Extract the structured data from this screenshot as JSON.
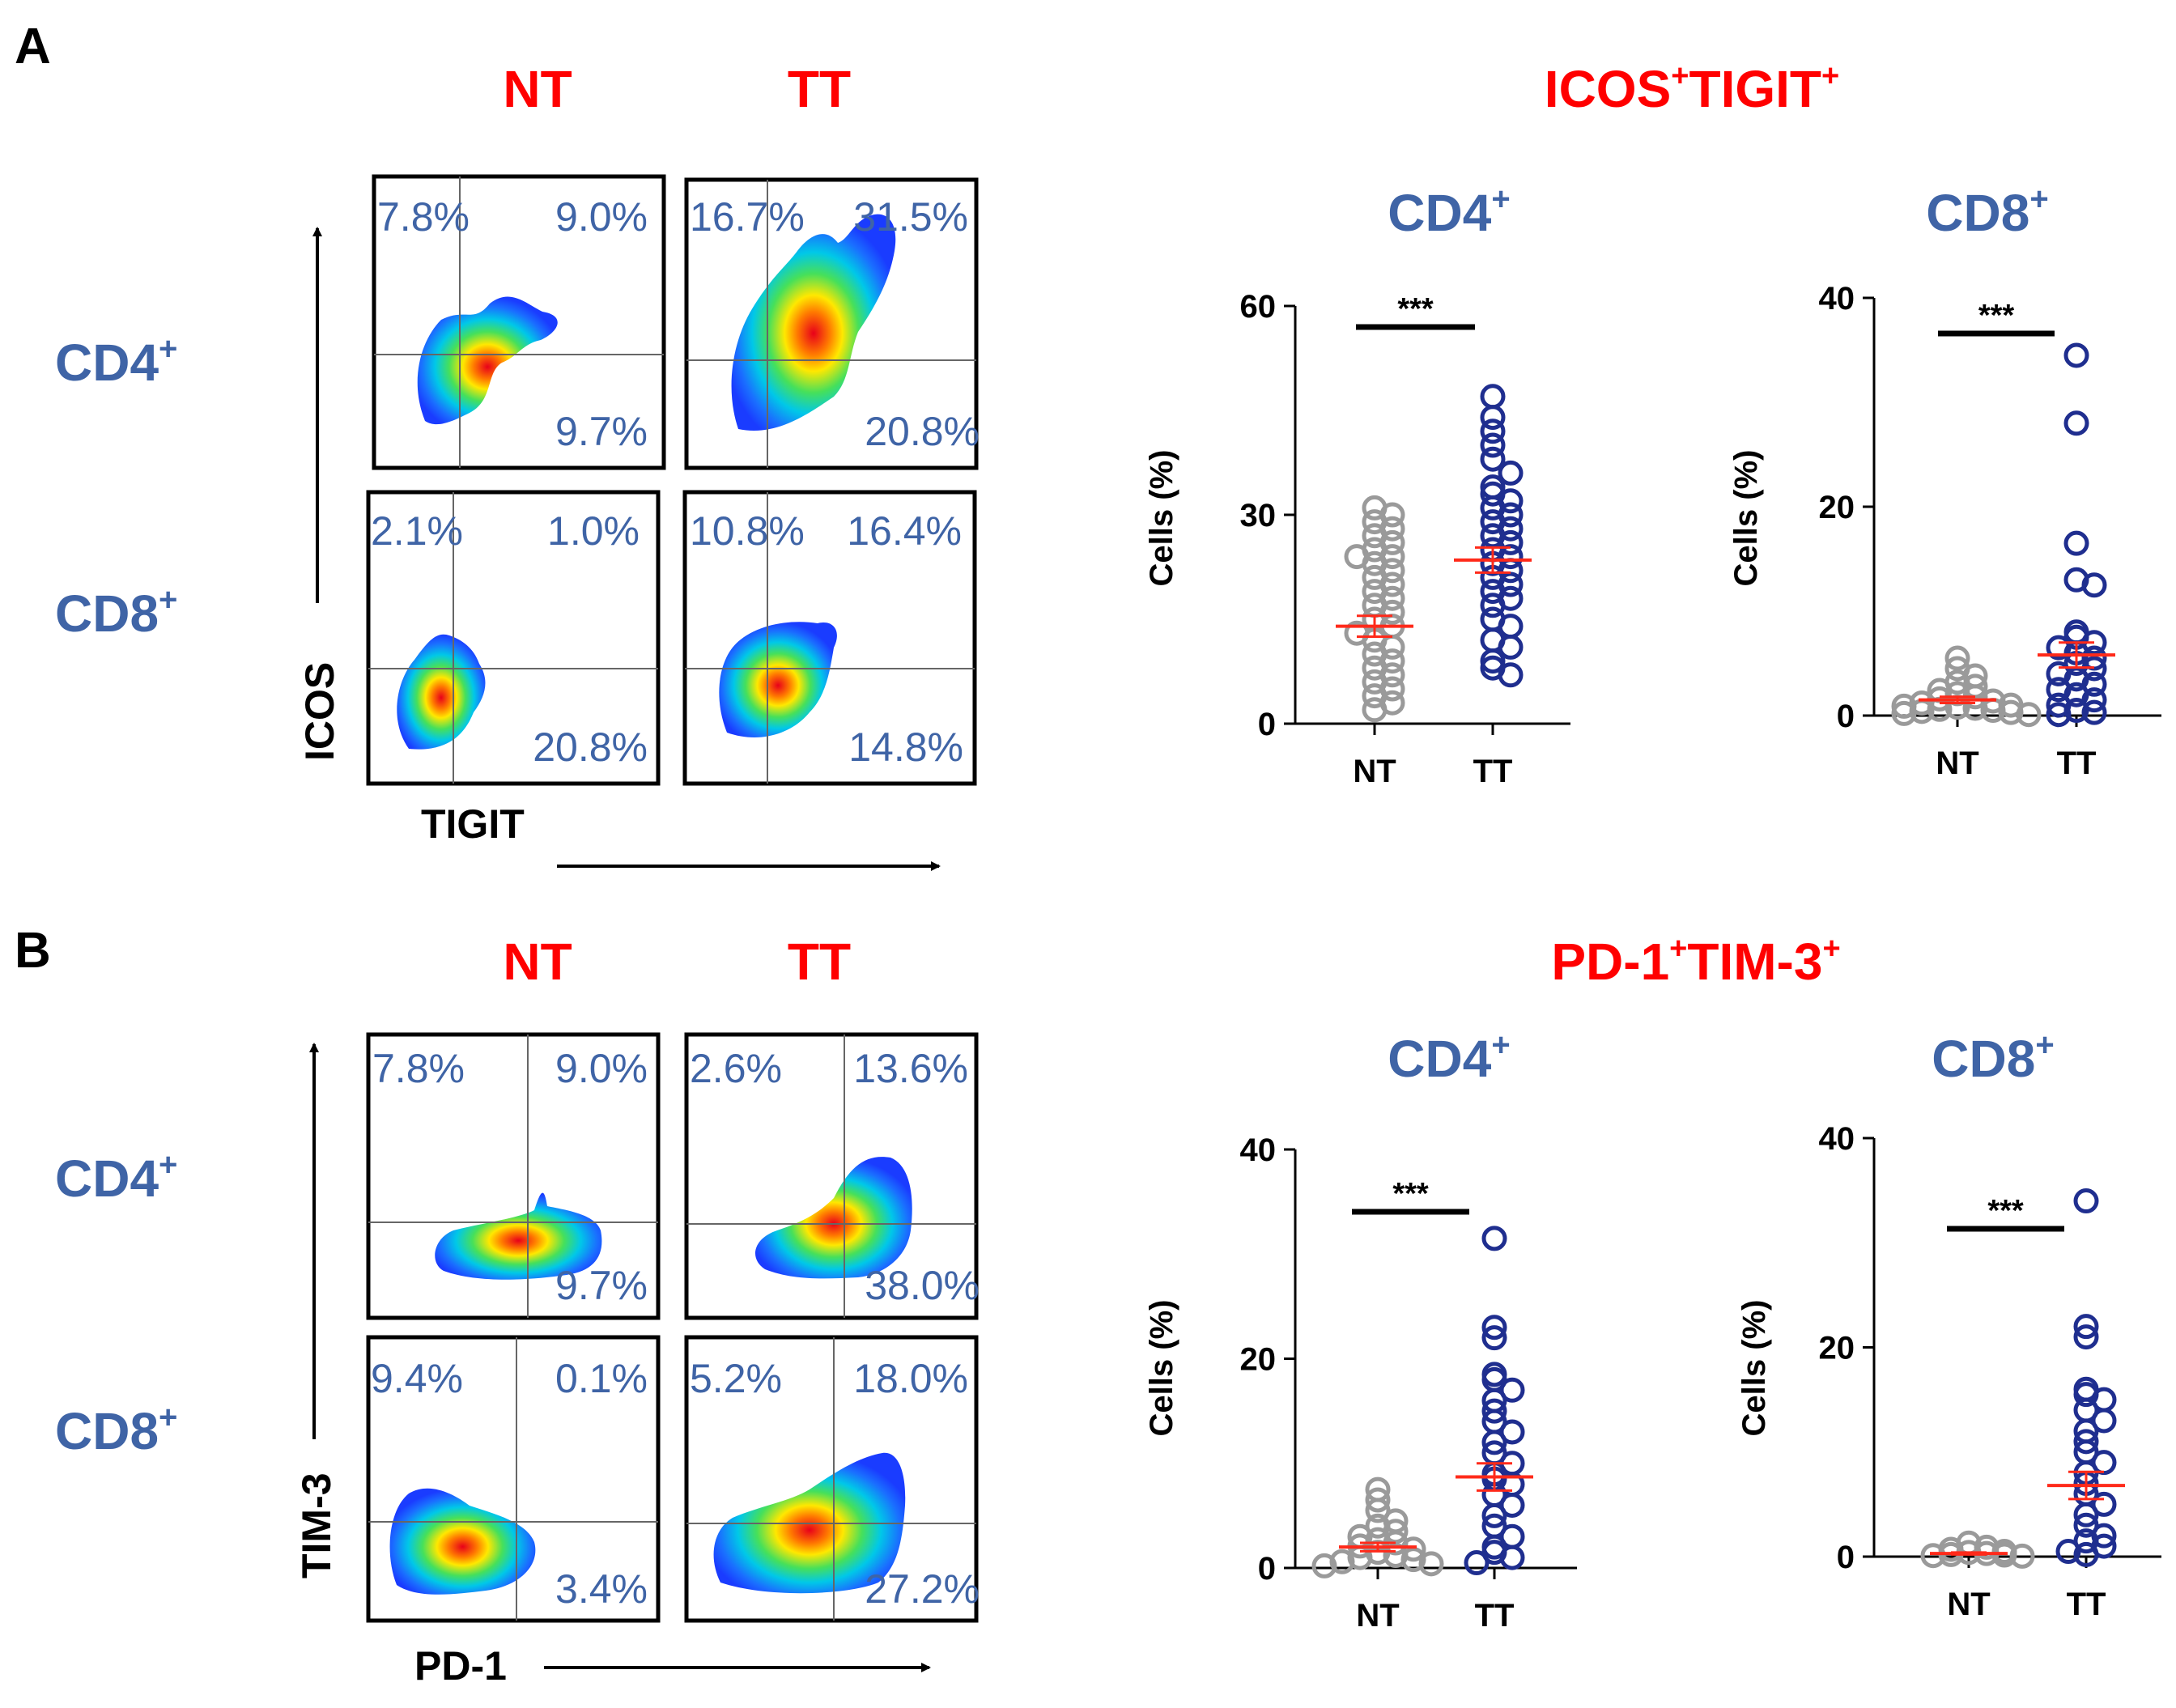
{
  "panels": {
    "a": {
      "letter": "A",
      "col_nt": "NT",
      "col_tt": "TT",
      "row_cd4": "CD4",
      "row_cd8": "CD8",
      "sup": "+",
      "y_axis": "ICOS",
      "x_axis": "TIGIT",
      "facs": {
        "cd4_nt": [
          "7.8%",
          "9.0%",
          "9.7%"
        ],
        "cd4_tt": [
          "16.7%",
          "31.5%",
          "20.8%"
        ],
        "cd8_nt": [
          "2.1%",
          "1.0%",
          "20.8%"
        ],
        "cd8_tt": [
          "10.8%",
          "16.4%",
          "14.8%"
        ]
      },
      "summary_title_1": "ICOS",
      "summary_title_2": "TIGIT"
    },
    "b": {
      "letter": "B",
      "col_nt": "NT",
      "col_tt": "TT",
      "row_cd4": "CD4",
      "row_cd8": "CD8",
      "sup": "+",
      "y_axis": "TIM-3",
      "x_axis": "PD-1",
      "facs": {
        "cd4_nt": [
          "7.8%",
          "9.0%",
          "9.7%"
        ],
        "cd4_tt": [
          "2.6%",
          "13.6%",
          "38.0%"
        ],
        "cd8_nt": [
          "9.4%",
          "0.1%",
          "3.4%"
        ],
        "cd8_tt": [
          "5.2%",
          "18.0%",
          "27.2%"
        ]
      },
      "summary_title_1": "PD-1",
      "summary_title_2": "TIM-3"
    }
  },
  "colors": {
    "red": "#ff0000",
    "blue_label": "#3f64a6",
    "nt_marker": "#9a9a9a",
    "tt_marker": "#1f2e8f",
    "mean_bar": "#ff2a1a"
  },
  "chart_data": [
    {
      "id": "a_cd4",
      "type": "scatter",
      "title": "CD4",
      "title_sup": "+",
      "ylabel": "Cells (%)",
      "categories": [
        "NT",
        "TT"
      ],
      "ylim": [
        0,
        60
      ],
      "yticks": [
        0,
        30,
        60
      ],
      "significance": "***",
      "series": [
        {
          "name": "NT",
          "mean": 14,
          "sem": 1.5,
          "values": [
            31,
            30,
            29,
            28,
            27,
            26,
            25,
            24,
            24,
            23,
            22,
            21,
            20,
            19,
            18,
            17,
            16,
            15,
            14,
            13,
            12,
            11,
            10,
            9,
            8,
            7,
            6,
            5,
            4,
            3,
            2
          ]
        },
        {
          "name": "TT",
          "mean": 23.5,
          "sem": 1.8,
          "values": [
            47,
            44,
            42,
            40,
            38,
            36,
            34,
            33,
            32,
            31,
            30,
            29,
            28,
            27,
            26,
            25,
            24,
            23,
            22,
            21,
            20,
            19,
            18,
            17,
            15,
            14,
            12,
            11,
            9,
            8,
            7
          ]
        }
      ]
    },
    {
      "id": "a_cd8",
      "type": "scatter",
      "title": "CD8",
      "title_sup": "+",
      "ylabel": "Cells (%)",
      "categories": [
        "NT",
        "TT"
      ],
      "ylim": [
        0,
        40
      ],
      "yticks": [
        0,
        20,
        40
      ],
      "significance": "***",
      "series": [
        {
          "name": "NT",
          "mean": 1.5,
          "sem": 0.3,
          "values": [
            5.5,
            4.5,
            3.8,
            3.2,
            2.8,
            2.4,
            2.1,
            1.8,
            1.6,
            1.4,
            1.2,
            1.0,
            0.9,
            0.8,
            0.7,
            0.6,
            0.5,
            0.4,
            0.3,
            0.2,
            0.1
          ]
        },
        {
          "name": "TT",
          "mean": 5.8,
          "sem": 1.2,
          "values": [
            34.5,
            28,
            16.5,
            13,
            12.5,
            8,
            7.5,
            7,
            6.5,
            6,
            5.5,
            5,
            4.5,
            4,
            3.5,
            3,
            2.5,
            2,
            1.5,
            1,
            0.5,
            0.3,
            0.1
          ]
        }
      ]
    },
    {
      "id": "b_cd4",
      "type": "scatter",
      "title": "CD4",
      "title_sup": "+",
      "ylabel": "Cells (%)",
      "categories": [
        "NT",
        "TT"
      ],
      "ylim": [
        0,
        40
      ],
      "yticks": [
        0,
        20,
        40
      ],
      "significance": "***",
      "series": [
        {
          "name": "NT",
          "mean": 2,
          "sem": 0.4,
          "values": [
            7.5,
            6.5,
            5.5,
            4.5,
            4,
            3.5,
            3,
            2.7,
            2.4,
            2.1,
            1.8,
            1.5,
            1.2,
            1,
            0.8,
            0.6,
            0.4,
            0.2
          ]
        },
        {
          "name": "TT",
          "mean": 8.7,
          "sem": 1.3,
          "values": [
            31.5,
            23,
            22,
            18.5,
            18,
            17,
            16,
            15,
            14,
            13,
            12,
            11,
            10,
            9,
            8.5,
            8,
            7,
            6,
            5,
            4,
            3,
            2,
            1.5,
            1,
            0.5
          ]
        }
      ]
    },
    {
      "id": "b_cd8",
      "type": "scatter",
      "title": "CD8",
      "title_sup": "+",
      "ylabel": "Cells (%)",
      "categories": [
        "NT",
        "TT"
      ],
      "ylim": [
        0,
        40
      ],
      "yticks": [
        0,
        20,
        40
      ],
      "significance": "***",
      "series": [
        {
          "name": "NT",
          "mean": 0.3,
          "sem": 0.1,
          "values": [
            1.3,
            0.9,
            0.7,
            0.5,
            0.4,
            0.3,
            0.2,
            0.15,
            0.1,
            0.05
          ]
        },
        {
          "name": "TT",
          "mean": 6.8,
          "sem": 1.3,
          "values": [
            34,
            22,
            21,
            16,
            15.5,
            15,
            14,
            13,
            12,
            11,
            10,
            9,
            8,
            7,
            6,
            5,
            4,
            3,
            2,
            1.5,
            1,
            0.5,
            0.2
          ]
        }
      ]
    }
  ]
}
